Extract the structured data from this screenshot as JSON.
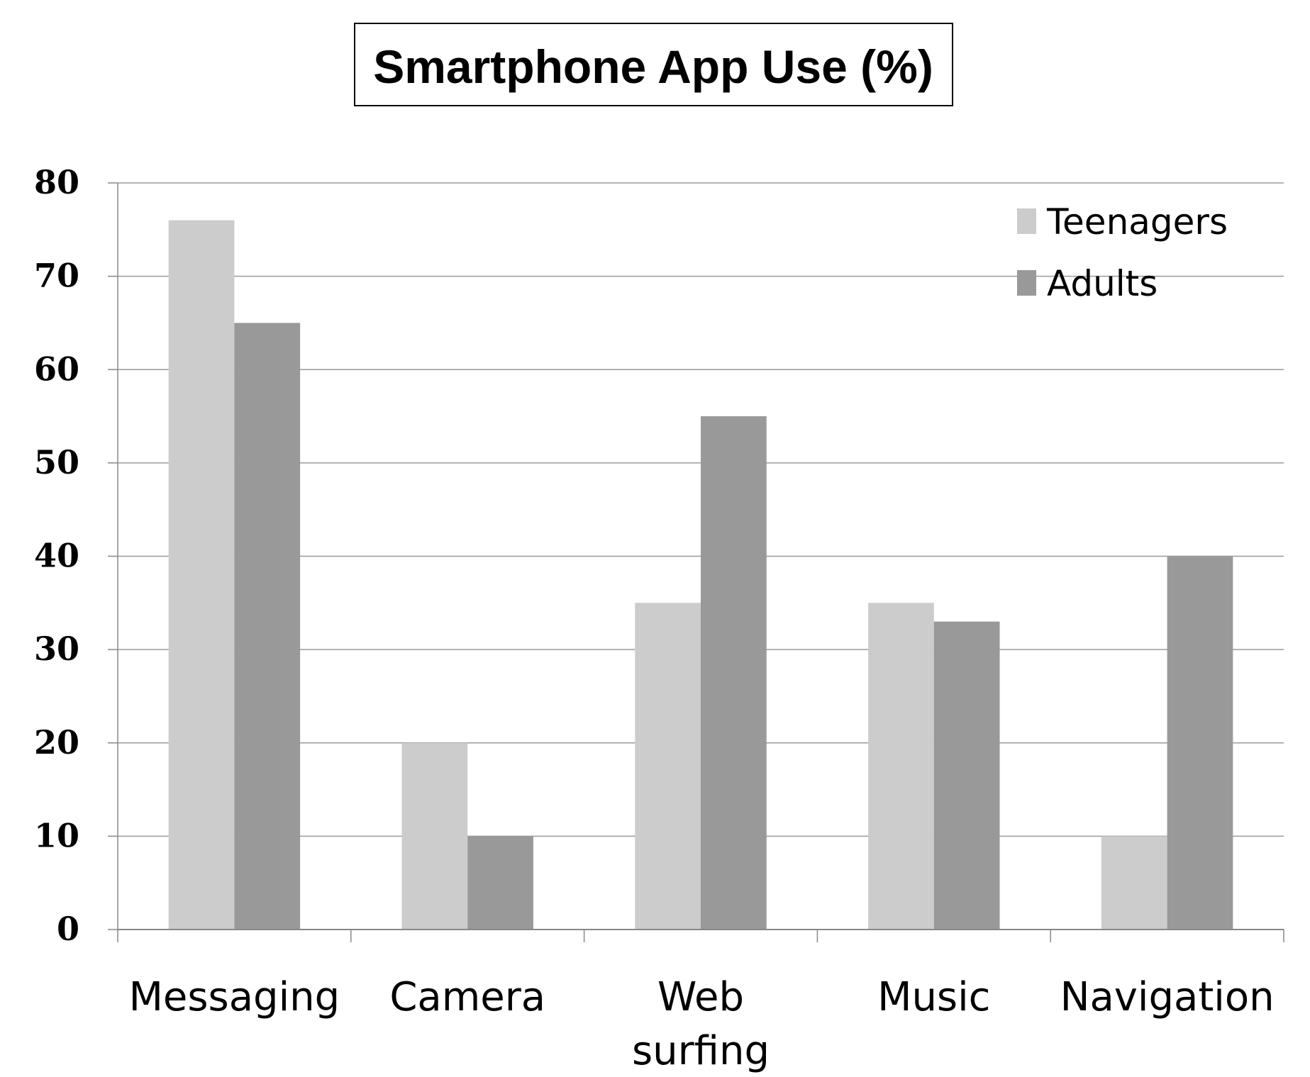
{
  "chart_data": {
    "type": "bar",
    "title": "Smartphone App Use (%)",
    "xlabel": "",
    "ylabel": "",
    "ylim": [
      0,
      80
    ],
    "yticks": [
      0,
      10,
      20,
      30,
      40,
      50,
      60,
      70,
      80
    ],
    "grid": true,
    "legend_position": "top-right",
    "categories": [
      [
        "Messaging"
      ],
      [
        "Camera"
      ],
      [
        "Web",
        "surfing"
      ],
      [
        "Music"
      ],
      [
        "Navigation"
      ]
    ],
    "series": [
      {
        "name": "Teenagers",
        "color": "#cccccc",
        "values": [
          76,
          20,
          35,
          35,
          10
        ]
      },
      {
        "name": "Adults",
        "color": "#999999",
        "values": [
          65,
          10,
          55,
          33,
          40
        ]
      }
    ]
  }
}
